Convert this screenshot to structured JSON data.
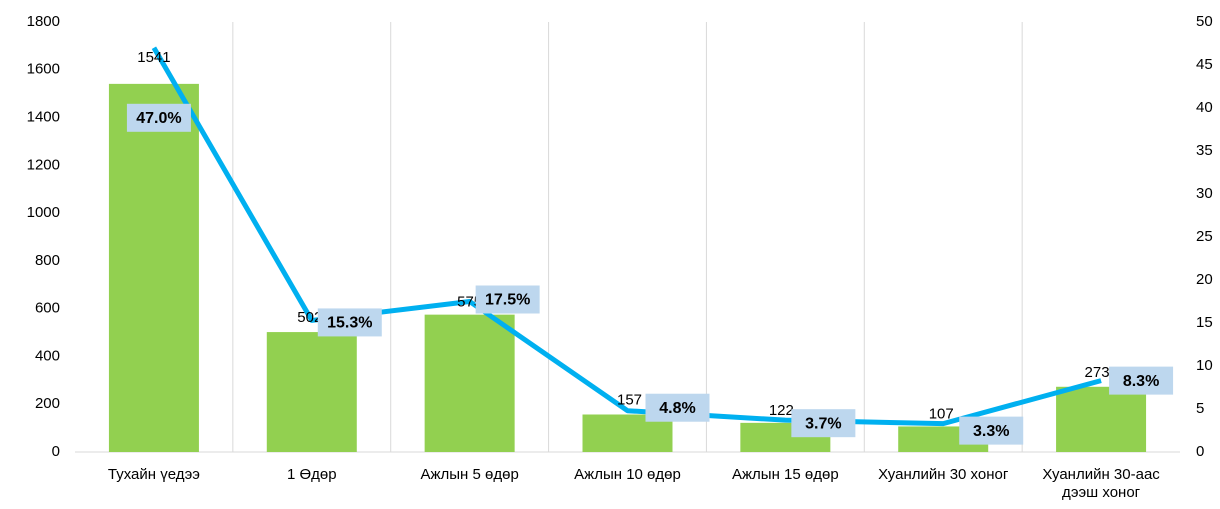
{
  "chart_data": {
    "type": "bar+line",
    "categories": [
      "Тухайн үедээ",
      "1 Өдөр",
      "Ажлын 5 өдөр",
      "Ажлын 10 өдөр",
      "Ажлын 15 өдөр",
      "Хуанлийн 30 хоног",
      "Хуанлийн 30-аас дээш хоног"
    ],
    "series": [
      {
        "type": "bar",
        "color": "#92d050",
        "values": [
          1541,
          502,
          575,
          157,
          122,
          107,
          273
        ]
      },
      {
        "type": "line",
        "color": "#00b0f0",
        "axis": "y2",
        "values": [
          47.0,
          15.3,
          17.5,
          4.8,
          3.7,
          3.3,
          8.3
        ],
        "value_labels": [
          "47.0%",
          "15.3%",
          "17.5%",
          "4.8%",
          "3.7%",
          "3.3%",
          "8.3%"
        ]
      }
    ],
    "ylim": [
      0,
      1800
    ],
    "yticks": [
      0,
      200,
      400,
      600,
      800,
      1000,
      1200,
      1400,
      1600,
      1800
    ],
    "y2lim": [
      0,
      50
    ],
    "y2ticks": [
      0,
      5,
      10,
      15,
      20,
      25,
      30,
      35,
      40,
      45,
      50
    ]
  }
}
